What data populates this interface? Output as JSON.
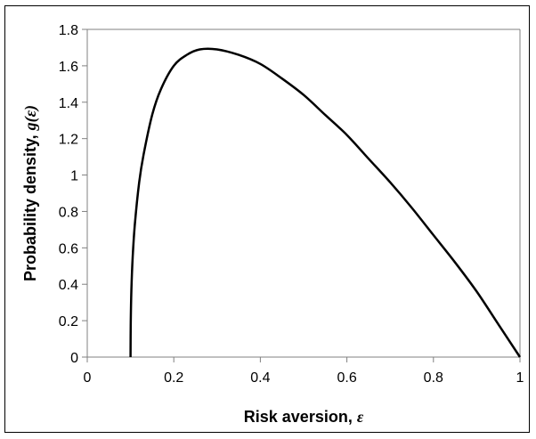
{
  "chart_data": {
    "type": "line",
    "title": "",
    "xlabel": "Risk aversion, ",
    "xlabel_symbol": "ε",
    "ylabel": "Probability density, ",
    "ylabel_symbol": "g(ε)",
    "xlim": [
      0,
      1
    ],
    "ylim": [
      0,
      1.8
    ],
    "xticks": [
      "0",
      "0.2",
      "0.4",
      "0.6",
      "0.8",
      "1"
    ],
    "yticks": [
      "0",
      "0.2",
      "0.4",
      "0.6",
      "0.8",
      "1",
      "1.2",
      "1.4",
      "1.6",
      "1.8"
    ],
    "grid": false,
    "legend": "none",
    "series": [
      {
        "color": "#000000",
        "x": [
          0.1,
          0.1005,
          0.102,
          0.105,
          0.11,
          0.12,
          0.13,
          0.15,
          0.17,
          0.2,
          0.23,
          0.26,
          0.3,
          0.35,
          0.4,
          0.45,
          0.5,
          0.55,
          0.6,
          0.65,
          0.7,
          0.75,
          0.8,
          0.85,
          0.9,
          0.95,
          1.0
        ],
        "y": [
          0.0,
          0.19,
          0.37,
          0.55,
          0.73,
          0.96,
          1.11,
          1.33,
          1.47,
          1.6,
          1.66,
          1.69,
          1.69,
          1.66,
          1.61,
          1.53,
          1.44,
          1.33,
          1.22,
          1.09,
          0.96,
          0.82,
          0.67,
          0.52,
          0.36,
          0.18,
          0.0
        ]
      }
    ]
  }
}
